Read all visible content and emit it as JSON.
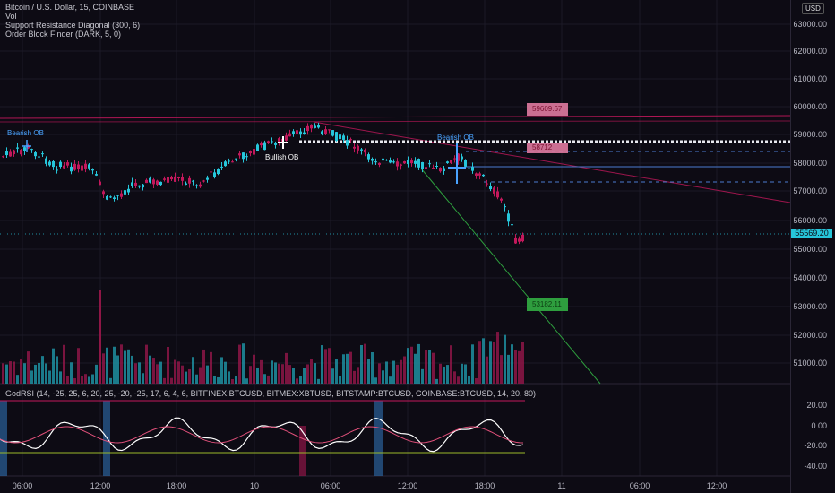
{
  "legend": {
    "symbol": "Bitcoin / U.S. Dollar, 15, COINBASE",
    "vol": "Vol",
    "srd": "Support Resistance Diagonal (300, 6)",
    "obf": "Order Block Finder (DARK, 5, 0)"
  },
  "currency": "USD",
  "rsi_legend": "GodRSI (14, -25, 25, 6, 20, 25, -20, -25, 17, 6, 4, 6, BITFINEX:BTCUSD, BITMEX:XBTUSD, BITSTAMP:BTCUSD, COINBASE:BTCUSD, 14, 20, 80)",
  "price_axis": [
    "63000.00",
    "62000.00",
    "61000.00",
    "60000.00",
    "59000.00",
    "58000.00",
    "57000.00",
    "56000.00",
    "55000.00",
    "54000.00",
    "53000.00",
    "52000.00",
    "51000.00"
  ],
  "rsi_axis": [
    "20.00",
    "0.00",
    "-20.00",
    "-40.00"
  ],
  "time_axis": [
    "06:00",
    "12:00",
    "18:00",
    "10",
    "06:00",
    "12:00",
    "18:00",
    "11",
    "06:00",
    "12:00"
  ],
  "last_price": "55569.20",
  "annotations": {
    "bearish_ob_1": "Bearish OB",
    "bearish_ob_2": "Bearish OB",
    "bullish_ob": "Bullish OB",
    "resistance_label": "59609.67",
    "mid_label": "58712",
    "support_label": "53182.11"
  },
  "colors": {
    "up": "#26c6da",
    "down": "#c2185b",
    "bg": "#0d0b14",
    "accent": "#26c6da"
  }
}
